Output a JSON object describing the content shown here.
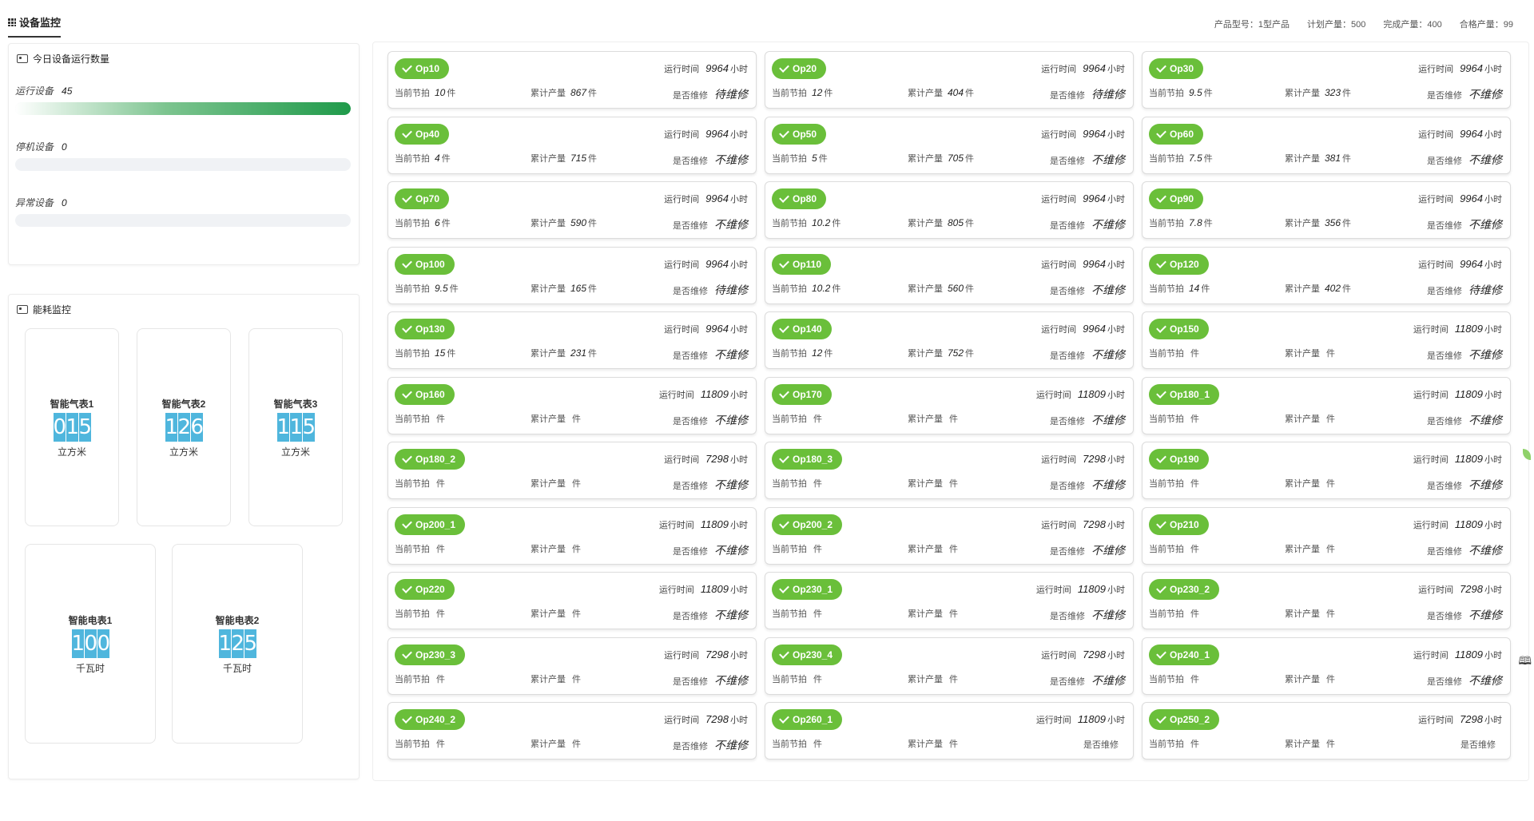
{
  "header": {
    "tab_title": "设备监控",
    "stats": [
      {
        "label": "产品型号：",
        "value": "1型产品"
      },
      {
        "label": "计划产量：",
        "value": "500"
      },
      {
        "label": "完成产量：",
        "value": "400"
      },
      {
        "label": "合格产量：",
        "value": "99"
      }
    ]
  },
  "status_panel": {
    "title": "今日设备运行数量",
    "rows": [
      {
        "label": "运行设备",
        "value": "45",
        "fill": 1.0
      },
      {
        "label": "停机设备",
        "value": "0",
        "fill": 0
      },
      {
        "label": "异常设备",
        "value": "0",
        "fill": 0
      }
    ]
  },
  "energy_panel": {
    "title": "能耗监控",
    "meters": [
      {
        "name": "智能气表1",
        "digits": [
          "0",
          "1",
          "5"
        ],
        "unit": "立方米"
      },
      {
        "name": "智能气表2",
        "digits": [
          "1",
          "2",
          "6"
        ],
        "unit": "立方米"
      },
      {
        "name": "智能气表3",
        "digits": [
          "1",
          "1",
          "5"
        ],
        "unit": "立方米"
      },
      {
        "name": "智能电表1",
        "digits": [
          "1",
          "0",
          "0"
        ],
        "unit": "千瓦时"
      },
      {
        "name": "智能电表2",
        "digits": [
          "1",
          "2",
          "5"
        ],
        "unit": "千瓦时"
      }
    ]
  },
  "labels": {
    "runtime": "运行时间",
    "hours": "小时",
    "current_beat": "当前节拍",
    "total_output": "累计产量",
    "piece": "件",
    "repair": "是否维修"
  },
  "devices": [
    {
      "name": "Op10",
      "runtime": "9964",
      "beat": "10",
      "total": "867",
      "repair": "待维修"
    },
    {
      "name": "Op20",
      "runtime": "9964",
      "beat": "12",
      "total": "404",
      "repair": "待维修"
    },
    {
      "name": "Op30",
      "runtime": "9964",
      "beat": "9.5",
      "total": "323",
      "repair": "不维修"
    },
    {
      "name": "Op40",
      "runtime": "9964",
      "beat": "4",
      "total": "715",
      "repair": "不维修"
    },
    {
      "name": "Op50",
      "runtime": "9964",
      "beat": "5",
      "total": "705",
      "repair": "不维修"
    },
    {
      "name": "Op60",
      "runtime": "9964",
      "beat": "7.5",
      "total": "381",
      "repair": "不维修"
    },
    {
      "name": "Op70",
      "runtime": "9964",
      "beat": "6",
      "total": "590",
      "repair": "不维修"
    },
    {
      "name": "Op80",
      "runtime": "9964",
      "beat": "10.2",
      "total": "805",
      "repair": "不维修"
    },
    {
      "name": "Op90",
      "runtime": "9964",
      "beat": "7.8",
      "total": "356",
      "repair": "不维修"
    },
    {
      "name": "Op100",
      "runtime": "9964",
      "beat": "9.5",
      "total": "165",
      "repair": "待维修"
    },
    {
      "name": "Op110",
      "runtime": "9964",
      "beat": "10.2",
      "total": "560",
      "repair": "不维修"
    },
    {
      "name": "Op120",
      "runtime": "9964",
      "beat": "14",
      "total": "402",
      "repair": "待维修"
    },
    {
      "name": "Op130",
      "runtime": "9964",
      "beat": "15",
      "total": "231",
      "repair": "不维修"
    },
    {
      "name": "Op140",
      "runtime": "9964",
      "beat": "12",
      "total": "752",
      "repair": "不维修"
    },
    {
      "name": "Op150",
      "runtime": "11809",
      "beat": "",
      "total": "",
      "repair": "不维修"
    },
    {
      "name": "Op160",
      "runtime": "11809",
      "beat": "",
      "total": "",
      "repair": "不维修"
    },
    {
      "name": "Op170",
      "runtime": "11809",
      "beat": "",
      "total": "",
      "repair": "不维修"
    },
    {
      "name": "Op180_1",
      "runtime": "11809",
      "beat": "",
      "total": "",
      "repair": "不维修"
    },
    {
      "name": "Op180_2",
      "runtime": "7298",
      "beat": "",
      "total": "",
      "repair": "不维修"
    },
    {
      "name": "Op180_3",
      "runtime": "7298",
      "beat": "",
      "total": "",
      "repair": "不维修"
    },
    {
      "name": "Op190",
      "runtime": "11809",
      "beat": "",
      "total": "",
      "repair": "不维修"
    },
    {
      "name": "Op200_1",
      "runtime": "11809",
      "beat": "",
      "total": "",
      "repair": "不维修"
    },
    {
      "name": "Op200_2",
      "runtime": "7298",
      "beat": "",
      "total": "",
      "repair": "不维修"
    },
    {
      "name": "Op210",
      "runtime": "11809",
      "beat": "",
      "total": "",
      "repair": "不维修"
    },
    {
      "name": "Op220",
      "runtime": "11809",
      "beat": "",
      "total": "",
      "repair": "不维修"
    },
    {
      "name": "Op230_1",
      "runtime": "11809",
      "beat": "",
      "total": "",
      "repair": "不维修"
    },
    {
      "name": "Op230_2",
      "runtime": "7298",
      "beat": "",
      "total": "",
      "repair": "不维修"
    },
    {
      "name": "Op230_3",
      "runtime": "7298",
      "beat": "",
      "total": "",
      "repair": "不维修"
    },
    {
      "name": "Op230_4",
      "runtime": "7298",
      "beat": "",
      "total": "",
      "repair": "不维修"
    },
    {
      "name": "Op240_1",
      "runtime": "11809",
      "beat": "",
      "total": "",
      "repair": "不维修"
    },
    {
      "name": "Op240_2",
      "runtime": "7298",
      "beat": "",
      "total": "",
      "repair": "不维修"
    },
    {
      "name": "Op260_1",
      "runtime": "11809",
      "beat": "",
      "total": "",
      "repair": ""
    },
    {
      "name": "Op250_2",
      "runtime": "7298",
      "beat": "",
      "total": "",
      "repair": ""
    }
  ]
}
